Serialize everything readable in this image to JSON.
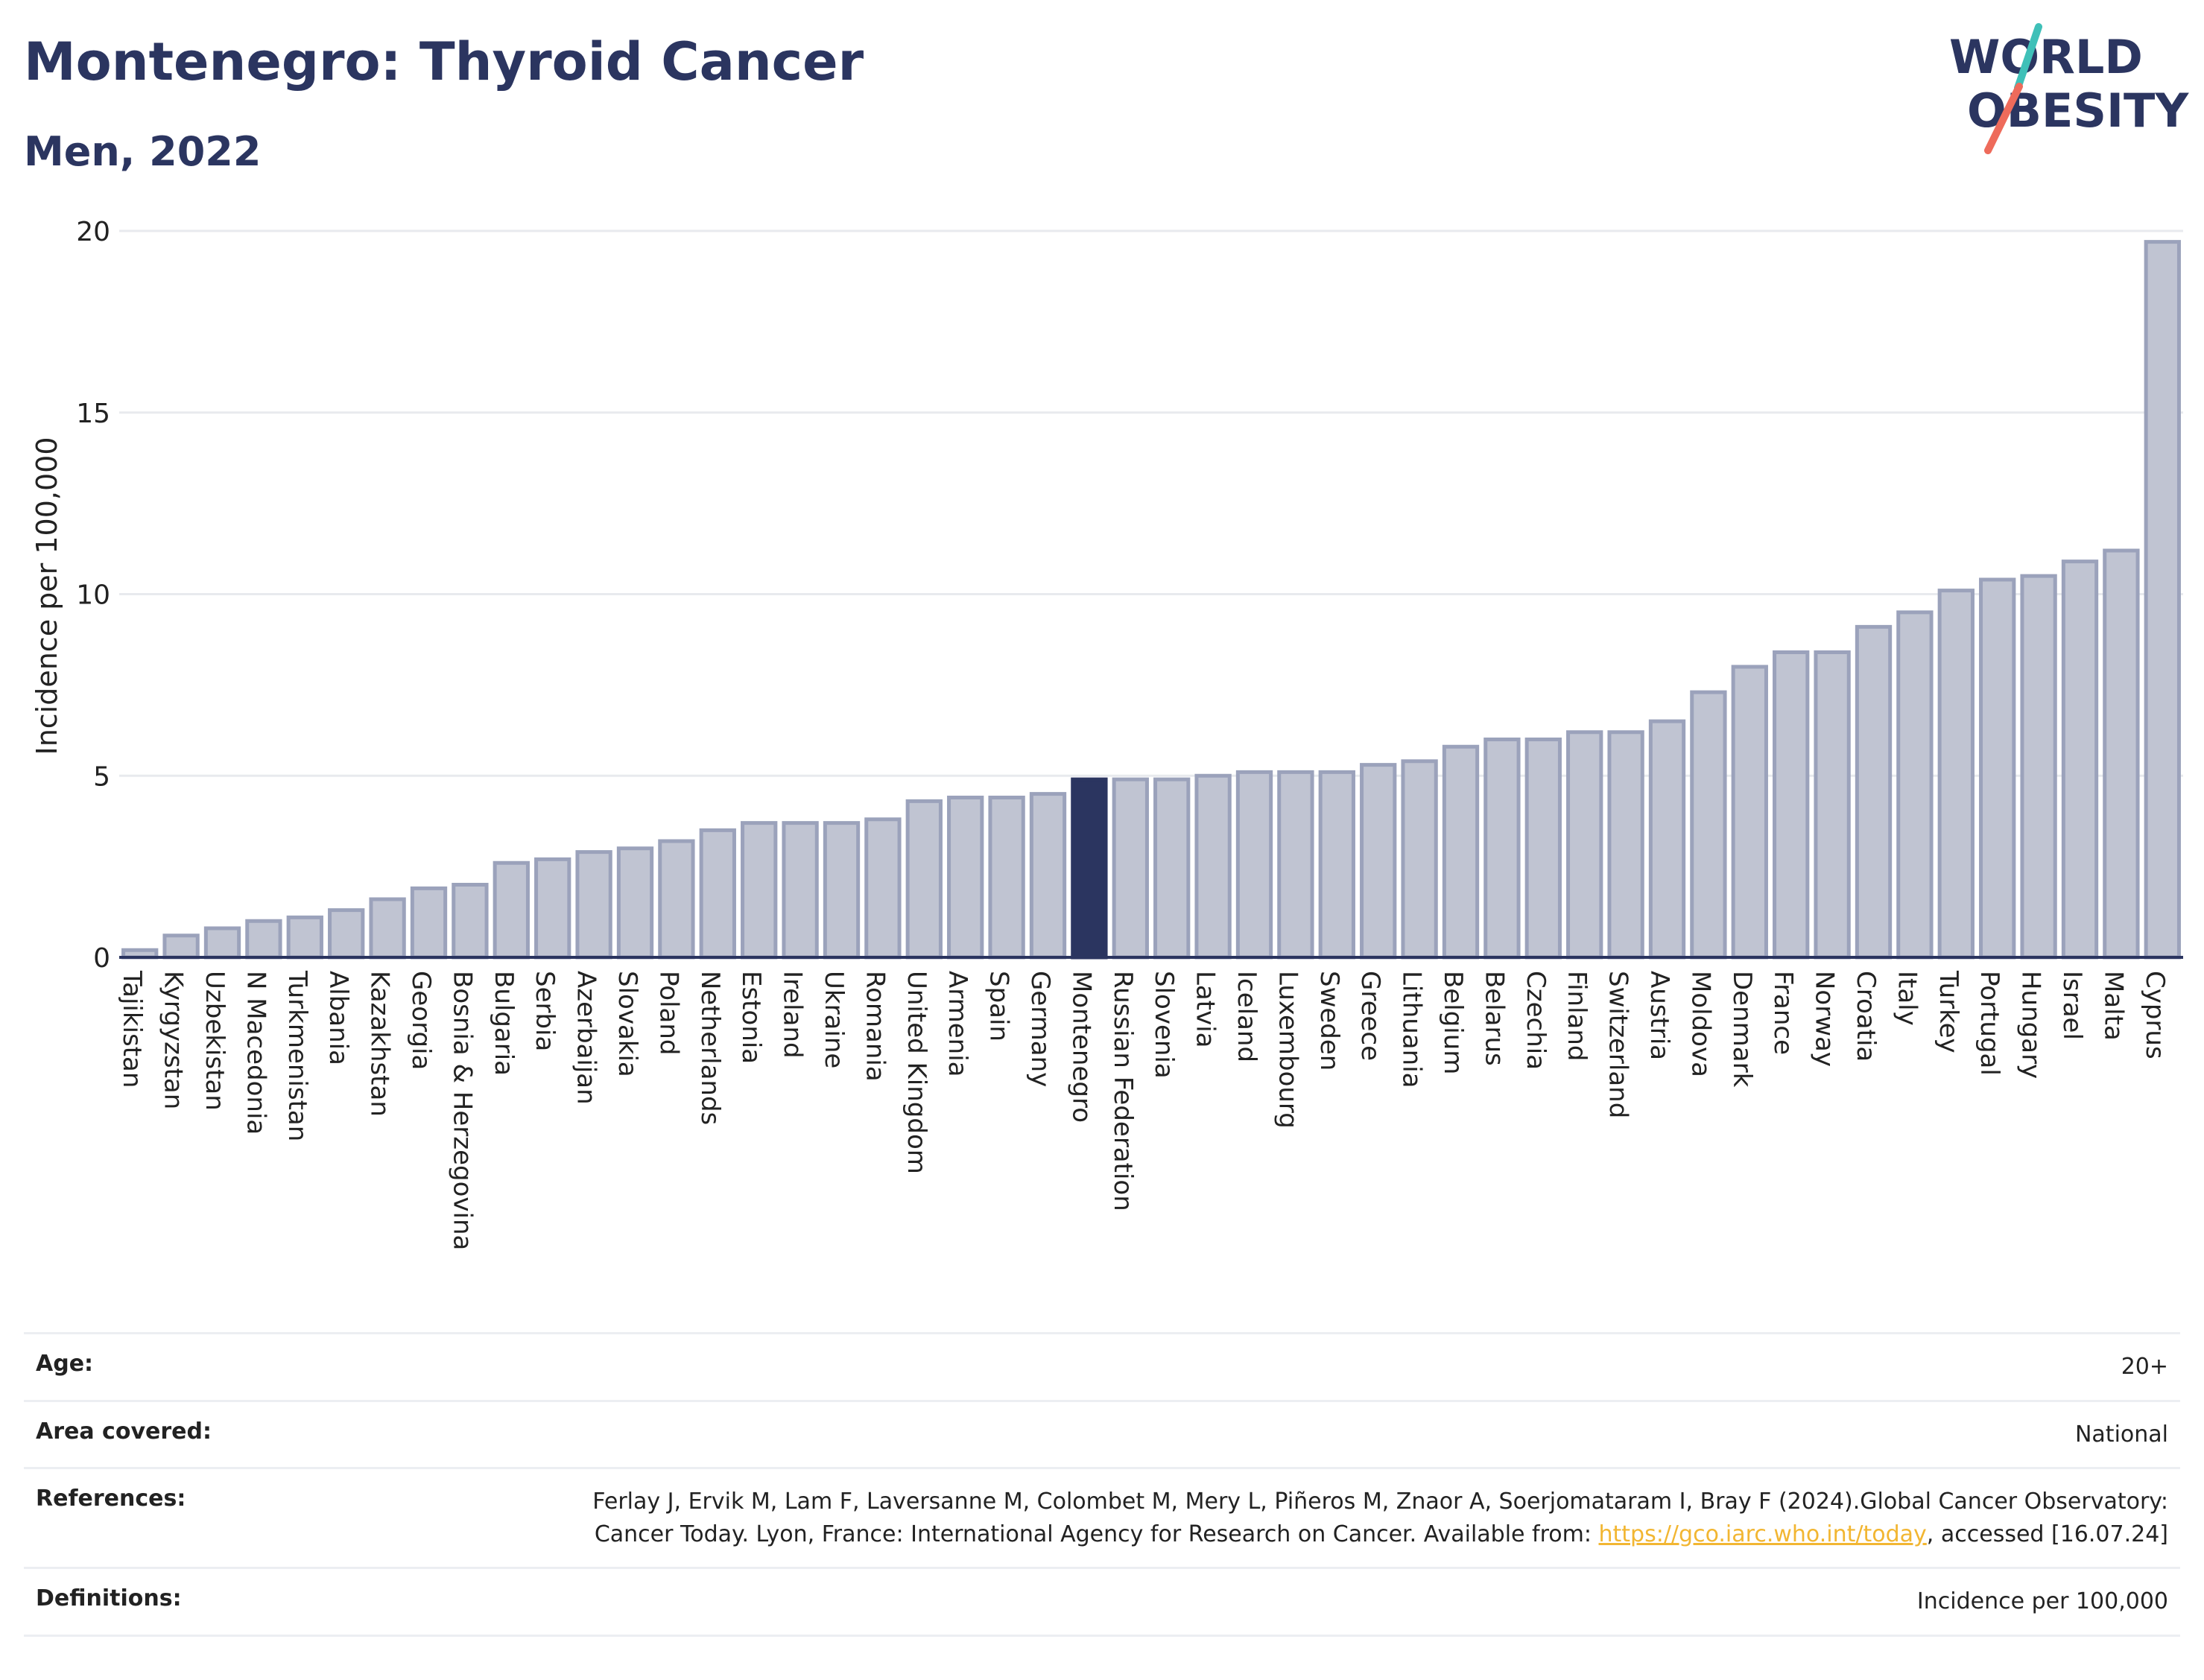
{
  "header": {
    "title": "Montenegro: Thyroid Cancer",
    "subtitle": "Men, 2022"
  },
  "logo": {
    "line1": "WORLD",
    "line2": "OBESITY",
    "colors": {
      "text": "#2b3560",
      "slash_coral": "#ee6b5b",
      "slash_teal": "#3fc0b8"
    }
  },
  "chart_data": {
    "type": "bar",
    "title": "Montenegro: Thyroid Cancer",
    "subtitle": "Men, 2022",
    "xlabel": "",
    "ylabel": "Incidence per 100,000",
    "ylim": [
      0,
      20
    ],
    "yticks": [
      0,
      5,
      10,
      15,
      20
    ],
    "grid": true,
    "highlight": "Montenegro",
    "colors": {
      "bar": "#c0c4d2",
      "bar_stroke": "#9ba2bb",
      "highlight": "#2b3560",
      "axis": "#2b3560",
      "grid": "#e8eaee"
    },
    "categories": [
      "Tajikistan",
      "Kyrgyzstan",
      "Uzbekistan",
      "N Macedonia",
      "Turkmenistan",
      "Albania",
      "Kazakhstan",
      "Georgia",
      "Bosnia & Herzegovina",
      "Bulgaria",
      "Serbia",
      "Azerbaijan",
      "Slovakia",
      "Poland",
      "Netherlands",
      "Estonia",
      "Ireland",
      "Ukraine",
      "Romania",
      "United Kingdom",
      "Armenia",
      "Spain",
      "Germany",
      "Montenegro",
      "Russian Federation",
      "Slovenia",
      "Latvia",
      "Iceland",
      "Luxembourg",
      "Sweden",
      "Greece",
      "Lithuania",
      "Belgium",
      "Belarus",
      "Czechia",
      "Finland",
      "Switzerland",
      "Austria",
      "Moldova",
      "Denmark",
      "France",
      "Norway",
      "Croatia",
      "Italy",
      "Turkey",
      "Portugal",
      "Hungary",
      "Israel",
      "Malta",
      "Cyprus"
    ],
    "values": [
      0.2,
      0.6,
      0.8,
      1.0,
      1.1,
      1.3,
      1.6,
      1.9,
      2.0,
      2.6,
      2.7,
      2.9,
      3.0,
      3.2,
      3.5,
      3.7,
      3.7,
      3.7,
      3.8,
      4.3,
      4.4,
      4.4,
      4.5,
      4.9,
      4.9,
      4.9,
      5.0,
      5.1,
      5.1,
      5.1,
      5.3,
      5.4,
      5.8,
      6.0,
      6.0,
      6.2,
      6.2,
      6.5,
      7.3,
      8.0,
      8.4,
      8.4,
      9.1,
      9.5,
      10.1,
      10.4,
      10.5,
      10.9,
      11.2,
      19.7
    ]
  },
  "meta": {
    "rows": [
      {
        "label": "Age:",
        "value": "20+"
      },
      {
        "label": "Area covered:",
        "value": "National"
      },
      {
        "label": "References:",
        "value_before": "Ferlay J, Ervik M, Lam F, Laversanne M, Colombet M, Mery L, Piñeros M, Znaor A, Soerjomataram I, Bray F (2024).Global Cancer Observatory: Cancer Today. Lyon, France: International Agency for Research on Cancer. Available from: ",
        "link": "https://gco.iarc.who.int/today",
        "value_after": ", accessed [16.07.24]"
      },
      {
        "label": "Definitions:",
        "value": "Incidence per 100,000"
      }
    ]
  }
}
